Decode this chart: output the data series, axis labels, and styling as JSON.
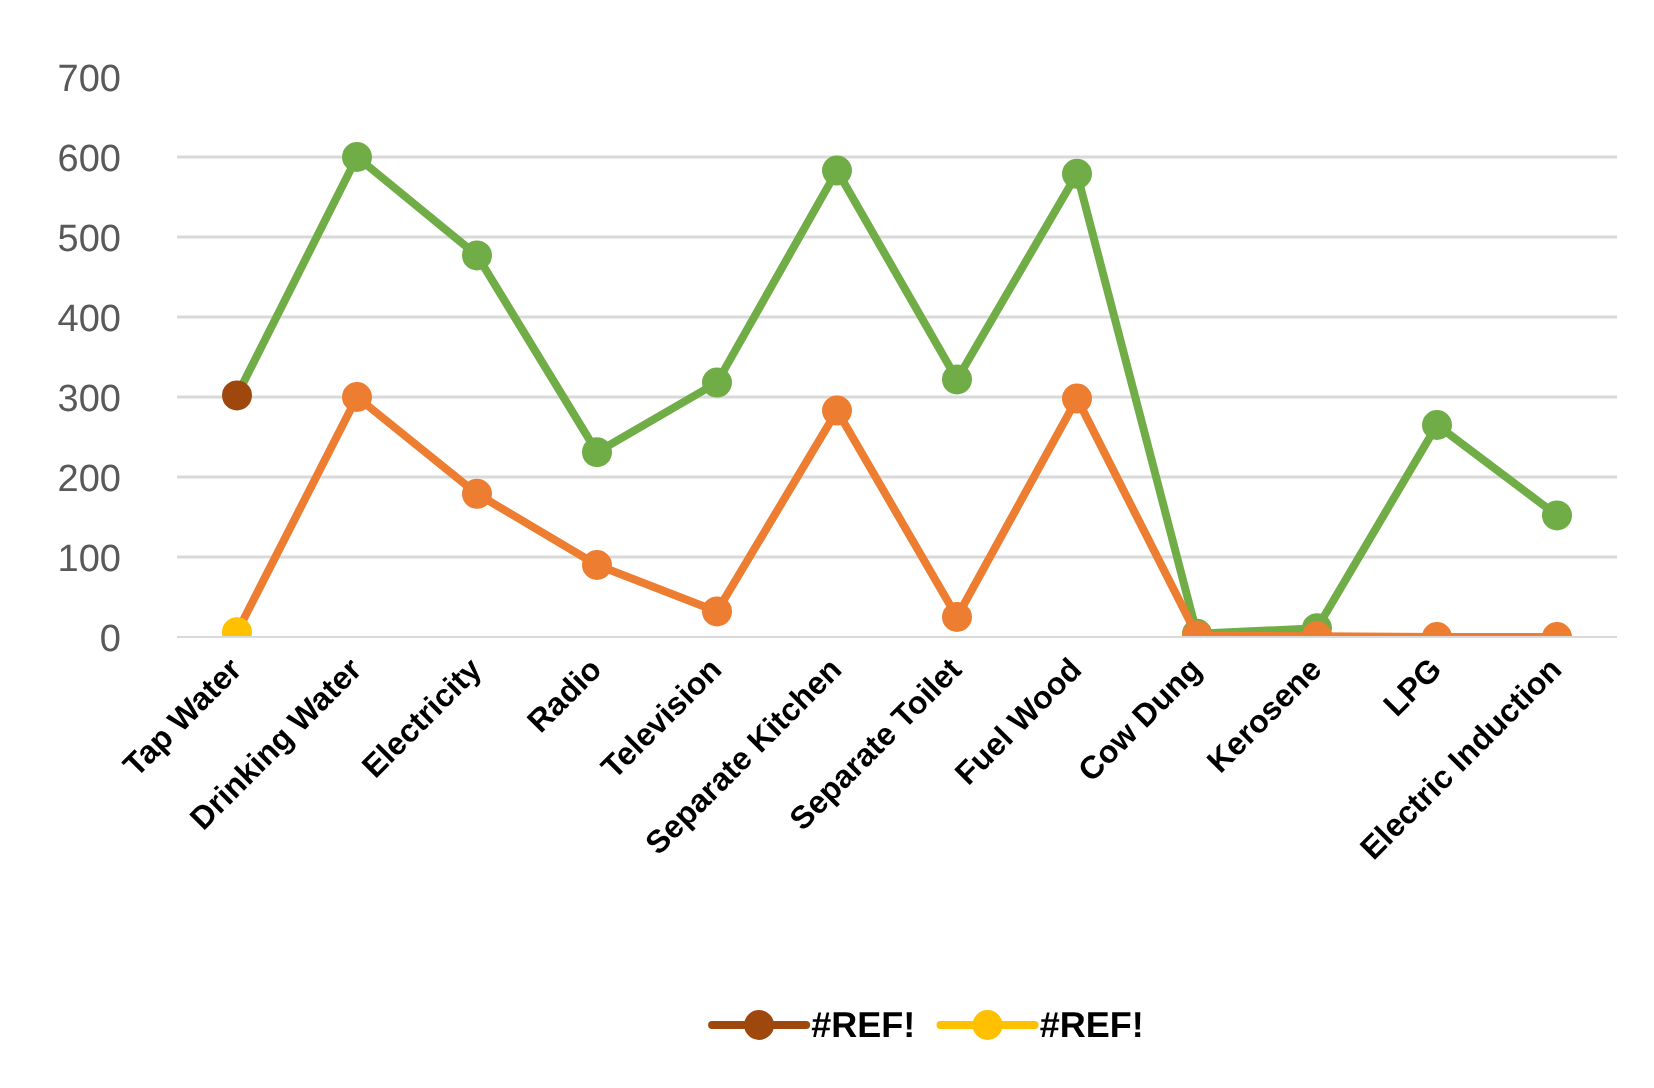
{
  "chart_data": {
    "type": "line",
    "categories": [
      "Tap Water",
      "Drinking Water",
      "Electricity",
      "Radio",
      "Television",
      "Separate Kitchen",
      "Separate Toilet",
      "Fuel Wood",
      "Cow Dung",
      "Kerosene",
      "LPG",
      "Electric Induction"
    ],
    "series": [
      {
        "name": "#REF!",
        "color": "#70ad47",
        "colors": [
          "#9e480e",
          "#70ad47",
          "#70ad47",
          "#70ad47",
          "#70ad47",
          "#70ad47",
          "#70ad47",
          "#70ad47",
          "#70ad47",
          "#70ad47",
          "#70ad47",
          "#70ad47"
        ],
        "values": [
          302,
          600,
          477,
          231,
          318,
          583,
          322,
          579,
          4,
          11,
          265,
          152
        ]
      },
      {
        "name": "#REF!",
        "color": "#ed7d31",
        "colors": [
          "#ffc000",
          "#ed7d31",
          "#ed7d31",
          "#ed7d31",
          "#ed7d31",
          "#ed7d31",
          "#ed7d31",
          "#ed7d31",
          "#ed7d31",
          "#ed7d31",
          "#ed7d31",
          "#ed7d31"
        ],
        "values": [
          6,
          300,
          179,
          90,
          32,
          283,
          25,
          298,
          2,
          1,
          0,
          0
        ]
      }
    ],
    "ylim": [
      0,
      700
    ],
    "yticks": [
      0,
      100,
      200,
      300,
      400,
      500,
      600,
      700
    ],
    "grid": "y",
    "legend": "bottom",
    "marker": "circle",
    "line_style": "solid"
  }
}
